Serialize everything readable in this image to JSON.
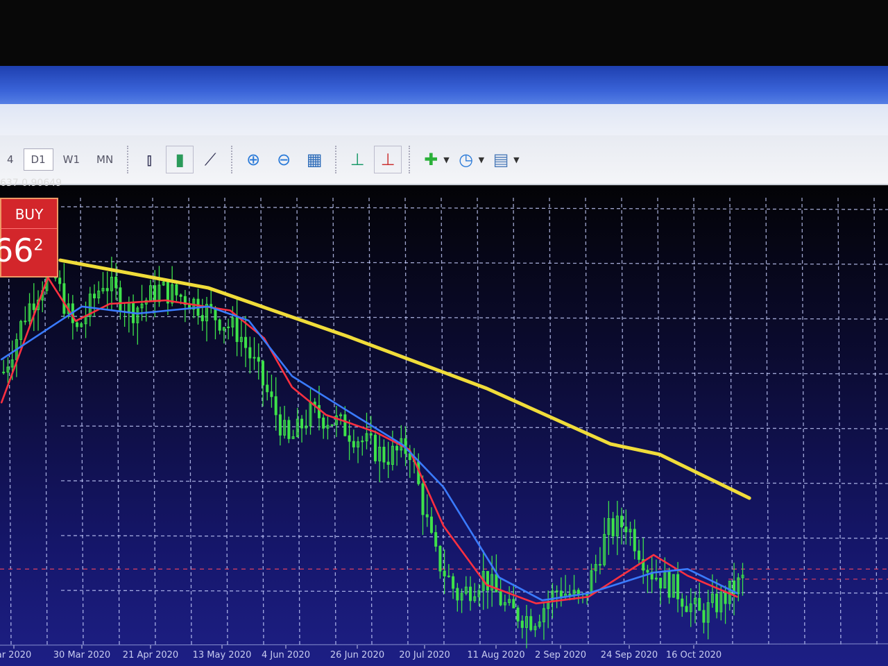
{
  "toolbar": {
    "timeframes": [
      {
        "label": "4"
      },
      {
        "label": "D1",
        "active": true
      },
      {
        "label": "W1"
      },
      {
        "label": "MN"
      }
    ],
    "icons": [
      "bar-chart-icon",
      "candlestick-icon",
      "line-chart-icon",
      "zoom-in-icon",
      "zoom-out-icon",
      "tile-windows-icon",
      "auto-scroll-icon",
      "chart-shift-icon",
      "indicators-icon",
      "periods-icon",
      "templates-icon"
    ]
  },
  "quote": {
    "text": "637 0.90649"
  },
  "buy": {
    "label": "BUY",
    "price": "66",
    "superscript": "2"
  },
  "colors": {
    "background": "#15166a",
    "grid": "#c8d0ff",
    "candles": "#3ee24a",
    "ma_fast": "#ff3040",
    "ma_mid": "#3a7bff",
    "ma_slow": "#f0dc3a",
    "level_line": "#e04060"
  },
  "chart_data": {
    "type": "line",
    "title": "",
    "xlabel": "",
    "ylabel": "",
    "x_ticks": [
      "ar 2020",
      "30 Mar 2020",
      "21 Apr 2020",
      "13 May 2020",
      "4 Jun 2020",
      "26 Jun 2020",
      "20 Jul 2020",
      "11 Aug 2020",
      "2 Sep 2020",
      "24 Sep 2020",
      "16 Oct 2020"
    ],
    "ylim": [
      0,
      100
    ],
    "grid": true,
    "price": {
      "name": "",
      "style": "candles",
      "points": [
        [
          "2020-03-04",
          60
        ],
        [
          "2020-03-12",
          75
        ],
        [
          "2020-03-20",
          85
        ],
        [
          "2020-03-28",
          70
        ],
        [
          "2020-04-06",
          82
        ],
        [
          "2020-04-15",
          75
        ],
        [
          "2020-04-24",
          80
        ],
        [
          "2020-05-03",
          78
        ],
        [
          "2020-05-12",
          74
        ],
        [
          "2020-05-20",
          70
        ],
        [
          "2020-05-28",
          58
        ],
        [
          "2020-06-05",
          45
        ],
        [
          "2020-06-12",
          52
        ],
        [
          "2020-06-20",
          50
        ],
        [
          "2020-06-28",
          46
        ],
        [
          "2020-07-06",
          42
        ],
        [
          "2020-07-14",
          44
        ],
        [
          "2020-07-22",
          20
        ],
        [
          "2020-07-30",
          10
        ],
        [
          "2020-08-07",
          15
        ],
        [
          "2020-08-15",
          7
        ],
        [
          "2020-08-23",
          5
        ],
        [
          "2020-08-31",
          12
        ],
        [
          "2020-09-08",
          9
        ],
        [
          "2020-09-16",
          25
        ],
        [
          "2020-09-22",
          27
        ],
        [
          "2020-09-30",
          16
        ],
        [
          "2020-10-08",
          12
        ],
        [
          "2020-10-16",
          6
        ],
        [
          "2020-10-24",
          10
        ],
        [
          "2020-10-30",
          14
        ]
      ]
    },
    "series": [
      {
        "color": "#f0dc3a",
        "points": [
          [
            "2020-03-23",
            86.6
          ],
          [
            "2020-05-10",
            80.3
          ],
          [
            "2020-06-24",
            69.3
          ],
          [
            "2020-08-08",
            57.5
          ],
          [
            "2020-09-17",
            44.9
          ],
          [
            "2020-10-03",
            42.5
          ],
          [
            "2020-11-01",
            32.6
          ]
        ]
      },
      {
        "color": "#ff3040",
        "points": [
          [
            "2020-03-04",
            54.3
          ],
          [
            "2020-03-19",
            82.7
          ],
          [
            "2020-03-28",
            72.8
          ],
          [
            "2020-04-08",
            76.7
          ],
          [
            "2020-04-26",
            77.5
          ],
          [
            "2020-05-17",
            75.2
          ],
          [
            "2020-05-28",
            68.9
          ],
          [
            "2020-06-06",
            57.8
          ],
          [
            "2020-06-17",
            51.5
          ],
          [
            "2020-07-03",
            47.6
          ],
          [
            "2020-07-14",
            43.6
          ],
          [
            "2020-07-25",
            26.3
          ],
          [
            "2020-08-08",
            12.9
          ],
          [
            "2020-08-24",
            8.7
          ],
          [
            "2020-09-10",
            10.2
          ],
          [
            "2020-10-01",
            19.7
          ],
          [
            "2020-10-12",
            15.0
          ],
          [
            "2020-10-28",
            10.2
          ]
        ]
      },
      {
        "color": "#3a7bff",
        "points": [
          [
            "2020-03-04",
            64.1
          ],
          [
            "2020-03-30",
            76.1
          ],
          [
            "2020-04-17",
            74.5
          ],
          [
            "2020-05-10",
            76.1
          ],
          [
            "2020-05-23",
            72.9
          ],
          [
            "2020-06-06",
            60.3
          ],
          [
            "2020-06-24",
            52.4
          ],
          [
            "2020-07-12",
            44.6
          ],
          [
            "2020-07-25",
            35.1
          ],
          [
            "2020-08-12",
            14.6
          ],
          [
            "2020-08-26",
            9.4
          ],
          [
            "2020-09-10",
            11.0
          ],
          [
            "2020-10-01",
            15.7
          ],
          [
            "2020-10-12",
            16.5
          ],
          [
            "2020-10-28",
            11.0
          ]
        ]
      }
    ],
    "horizontal_levels": [
      16.5,
      14.2
    ]
  }
}
